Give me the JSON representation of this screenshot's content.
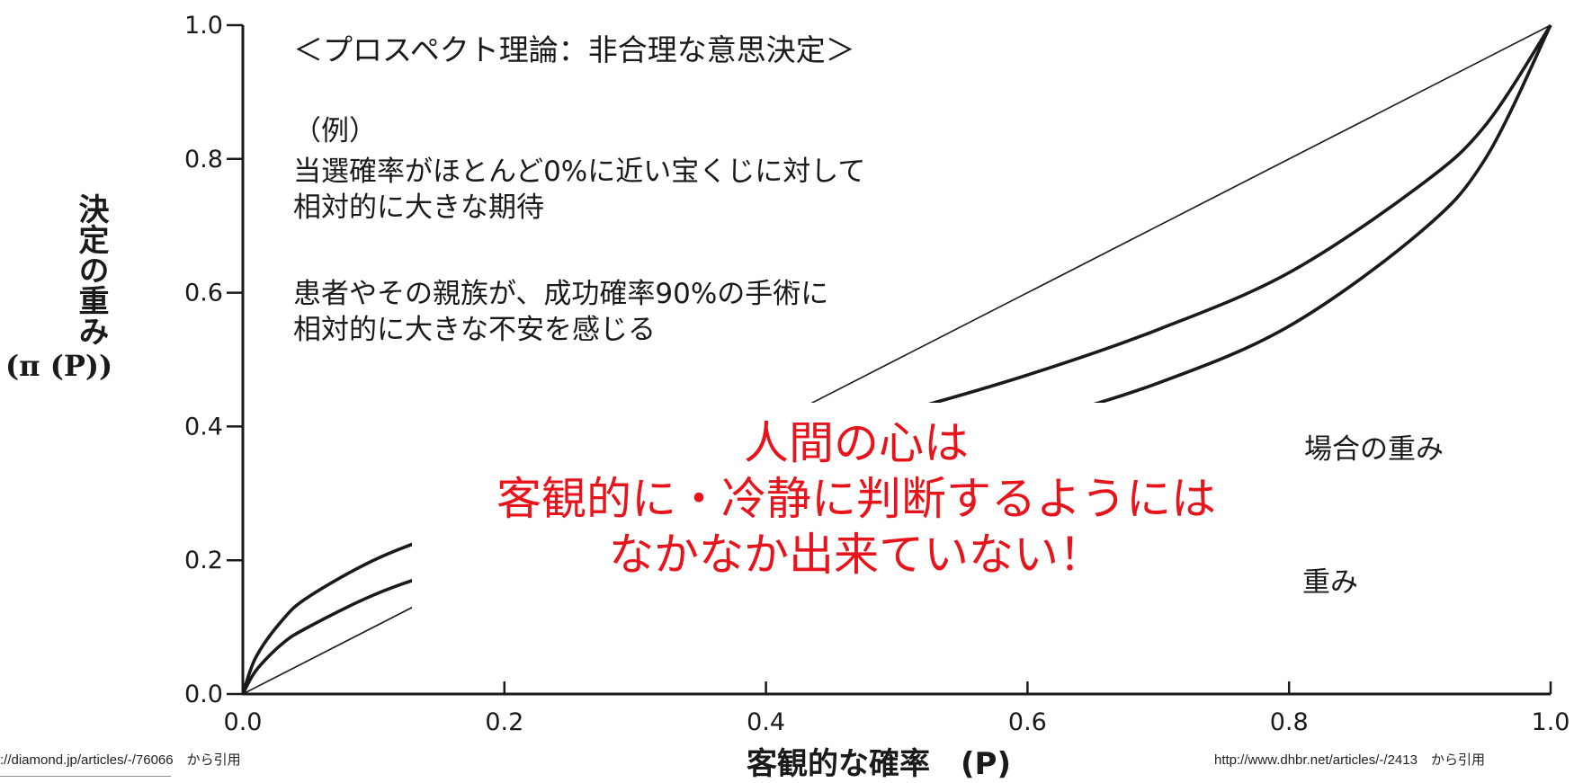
{
  "chart_data": {
    "type": "line",
    "xlabel": "客観的な確率　(P)",
    "ylabel": "決定の重み",
    "ylabel_symbol": "(π (P))",
    "xlim": [
      0,
      1
    ],
    "ylim": [
      0,
      1
    ],
    "xticks": [
      "0.0",
      "0.2",
      "0.4",
      "0.6",
      "0.8",
      "1.0"
    ],
    "yticks": [
      "0.0",
      "0.2",
      "0.4",
      "0.6",
      "0.8",
      "1.0"
    ],
    "grid": false,
    "series": [
      {
        "name": "",
        "x": [
          0,
          1
        ],
        "y": [
          0,
          1
        ]
      },
      {
        "name": "",
        "x": [
          0,
          0.01,
          0.03,
          0.05,
          0.1,
          0.15,
          0.2,
          0.3,
          0.4,
          0.5,
          0.6,
          0.7,
          0.8,
          0.9,
          0.95,
          1.0
        ],
        "y": [
          0,
          0.055,
          0.11,
          0.145,
          0.2,
          0.238,
          0.268,
          0.32,
          0.37,
          0.42,
          0.477,
          0.545,
          0.63,
          0.76,
          0.85,
          1.0
        ]
      },
      {
        "name": "",
        "x": [
          0,
          0.01,
          0.03,
          0.05,
          0.1,
          0.15,
          0.2,
          0.3,
          0.4,
          0.5,
          0.6,
          0.7,
          0.8,
          0.9,
          0.95,
          1.0
        ],
        "y": [
          0,
          0.035,
          0.075,
          0.1,
          0.148,
          0.183,
          0.212,
          0.26,
          0.307,
          0.355,
          0.405,
          0.465,
          0.55,
          0.69,
          0.8,
          1.0
        ]
      }
    ]
  },
  "annotations": {
    "title": "＜プロスペクト理論：非合理な意思決定＞",
    "example_heading": "（例）",
    "example1_line1": "当選確率がほとんど0%に近い宝くじに対して",
    "example1_line2": "相対的に大きな期待",
    "example2_line1": "患者やその親族が、成功確率90%の手術に",
    "example2_line2": "相対的に大きな不安を感じる",
    "partial_label_1": "場合の重み",
    "partial_label_2": "重み",
    "message_line1": "人間の心は",
    "message_line2": "客観的に・冷静に判断するようには",
    "message_line3": "なかなか出来ていない！"
  },
  "sources": {
    "left": "://diamond.jp/articles/-/76066　から引用",
    "right": "http://www.dhbr.net/articles/-/2413　から引用"
  },
  "colors": {
    "ink": "#1a1a1a",
    "message": "#e8141b"
  }
}
